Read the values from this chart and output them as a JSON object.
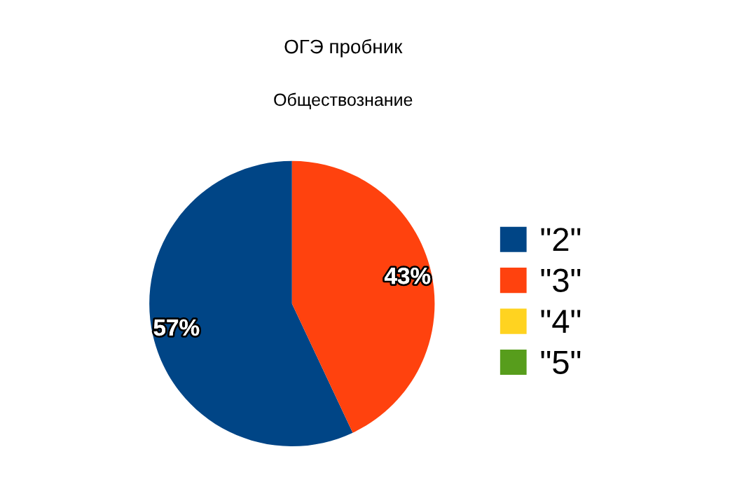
{
  "chart_data": {
    "type": "pie",
    "title": "ОГЭ пробник",
    "subtitle": "Обществознание",
    "categories": [
      "\"2\"",
      "\"3\"",
      "\"4\"",
      "\"5\""
    ],
    "values": [
      57,
      43,
      0,
      0
    ],
    "colors": [
      "#004586",
      "#ff420e",
      "#ffd320",
      "#579d1c"
    ],
    "value_labels": [
      "57%",
      "43%",
      null,
      null
    ],
    "legend": "right"
  }
}
